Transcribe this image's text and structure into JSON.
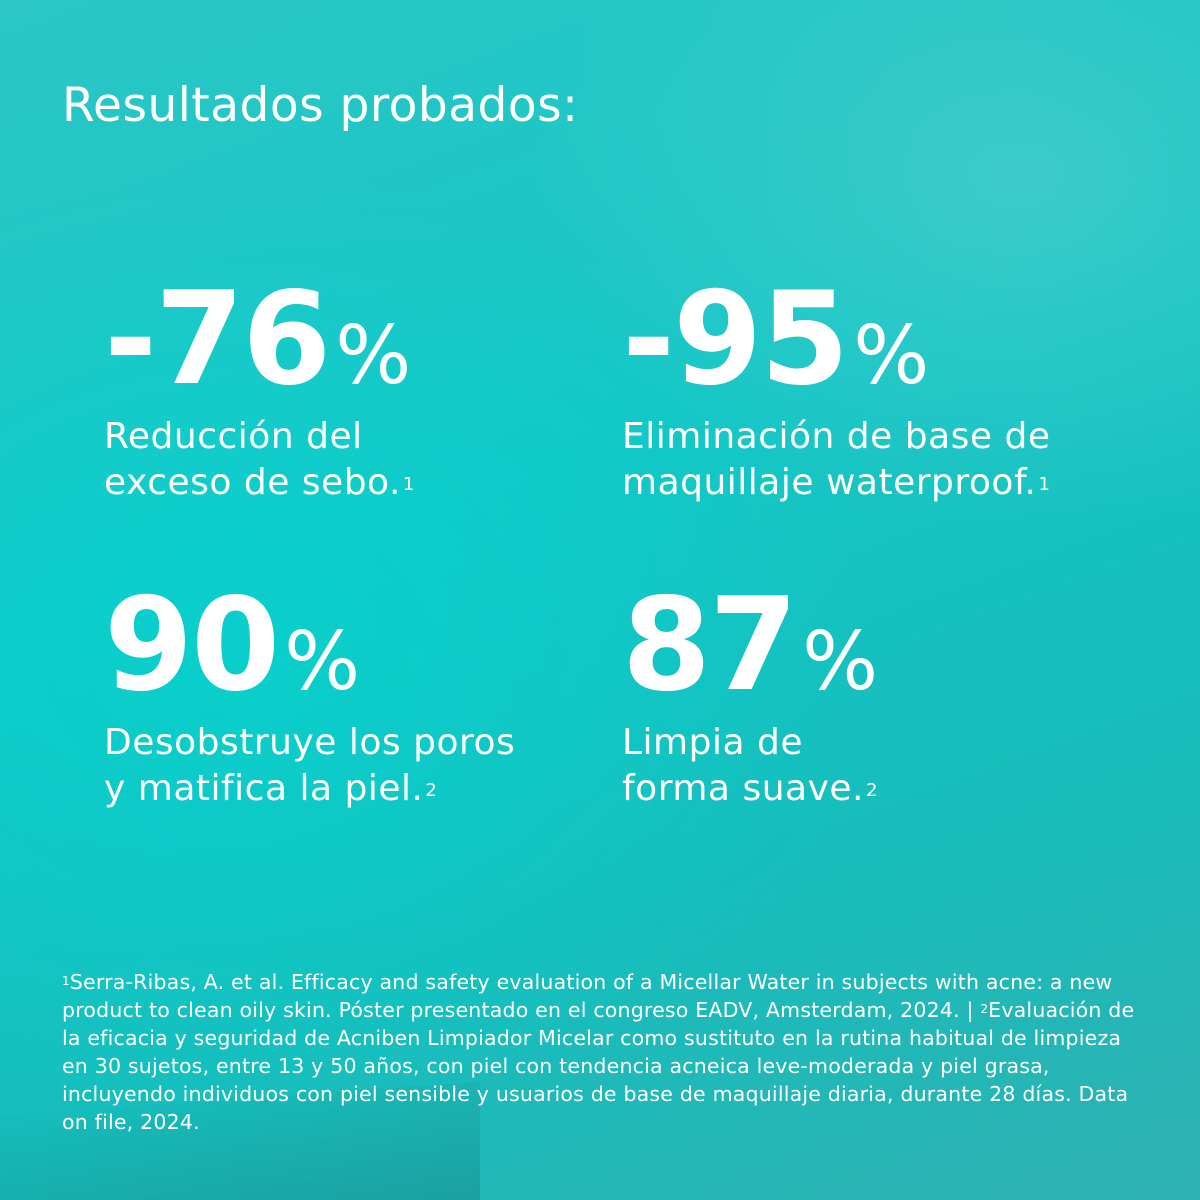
{
  "heading": "Resultados probados:",
  "stats": [
    {
      "value": "-76",
      "unit": "%",
      "line1": "Reducción del",
      "line2": "exceso de sebo.",
      "ref": "1"
    },
    {
      "value": "-95",
      "unit": "%",
      "line1": "Eliminación de base de",
      "line2": "maquillaje waterproof.",
      "ref": "1"
    },
    {
      "value": "90",
      "unit": "%",
      "line1": "Desobstruye los poros",
      "line2": "y matifica la piel.",
      "ref": "2"
    },
    {
      "value": "87",
      "unit": "%",
      "line1": "Limpia de",
      "line2": "forma suave.",
      "ref": "2"
    }
  ],
  "footnote": {
    "ref1_marker": "1",
    "ref1_text": "Serra-Ribas, A. et al. Efficacy and safety evaluation of a Micellar Water in subjects with acne: a new product to clean oily skin. Póster presentado en el congreso EADV, Amsterdam, 2024. | ",
    "ref2_marker": "2",
    "ref2_text": "Evaluación de la eficacia y seguridad de Acniben Limpiador Micelar como sustituto en la rutina habitual de limpieza en 30 sujetos, entre 13 y 50 años, con piel con tendencia acneica leve-moderada y piel grasa, incluyendo individuos con piel sensible y usuarios de base de maquillaje diaria, durante 28 días. Data on file, 2024."
  },
  "colors": {
    "background": "#14c7c6",
    "text": "#ffffff"
  }
}
